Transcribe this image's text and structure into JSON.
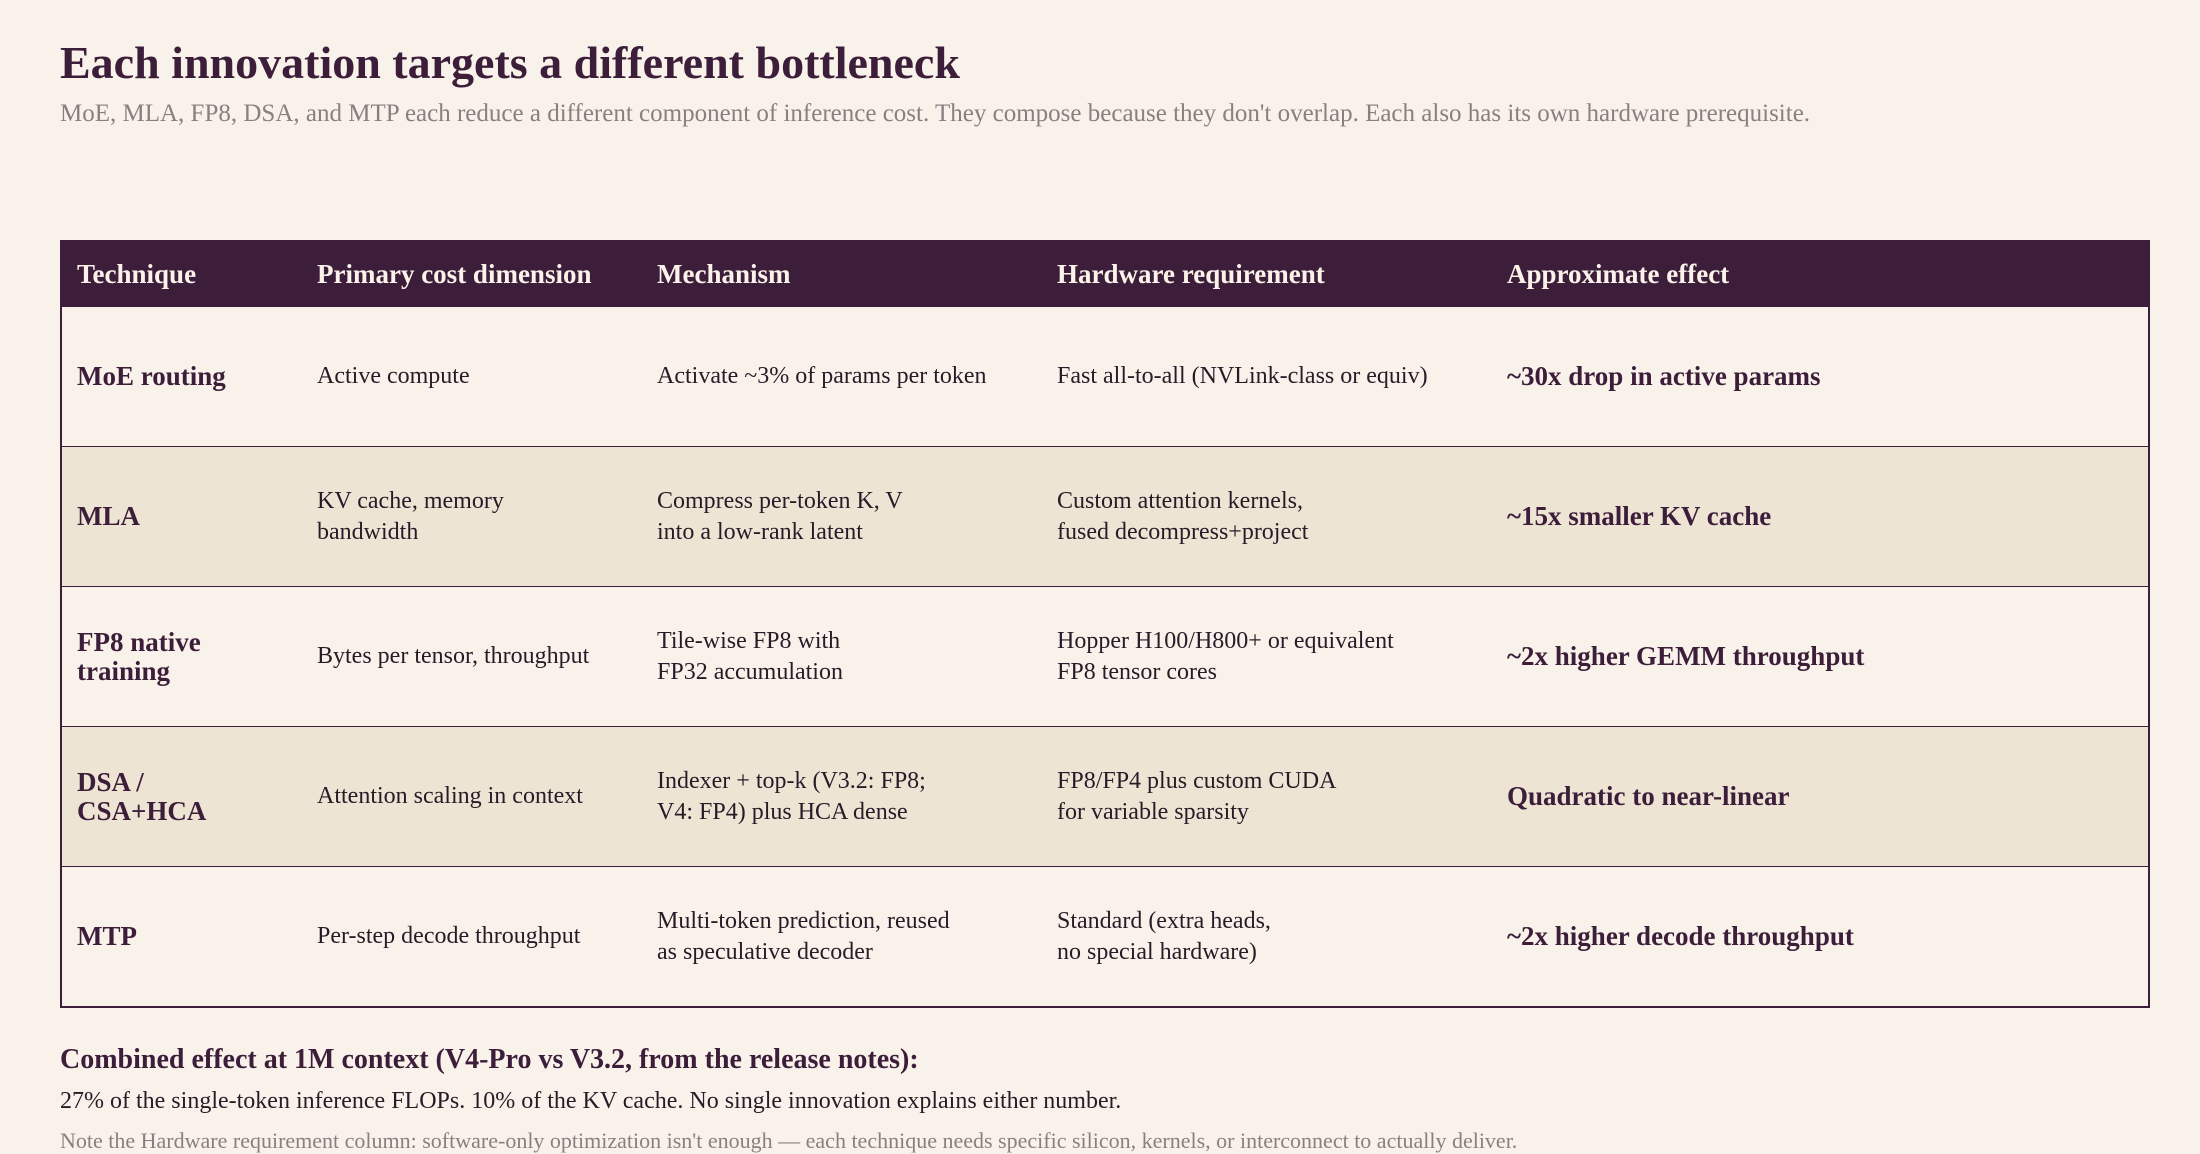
{
  "header": {
    "title": "Each innovation targets a different bottleneck",
    "subtitle": "MoE, MLA, FP8, DSA, and MTP each reduce a different component of inference cost. They compose because they don't overlap. Each also has its own hardware prerequisite."
  },
  "table": {
    "columns": [
      "Technique",
      "Primary cost dimension",
      "Mechanism",
      "Hardware requirement",
      "Approximate effect"
    ],
    "rows": [
      [
        "MoE routing",
        "Active compute",
        "Activate ~3% of params per token",
        "Fast all-to-all (NVLink-class or equiv)",
        "~30x drop in active params"
      ],
      [
        "MLA",
        "KV cache, memory\nbandwidth",
        "Compress per-token K, V\ninto a low-rank latent",
        "Custom attention kernels,\nfused decompress+project",
        "~15x smaller KV cache"
      ],
      [
        "FP8 native\ntraining",
        "Bytes per tensor, throughput",
        "Tile-wise FP8 with\nFP32 accumulation",
        "Hopper H100/H800+ or equivalent\nFP8 tensor cores",
        "~2x higher GEMM throughput"
      ],
      [
        "DSA /\nCSA+HCA",
        "Attention scaling in context",
        "Indexer + top-k (V3.2: FP8;\nV4: FP4) plus HCA dense",
        "FP8/FP4 plus custom CUDA\nfor variable sparsity",
        "Quadratic to near-linear"
      ],
      [
        "MTP",
        "Per-step decode throughput",
        "Multi-token prediction, reused\nas speculative decoder",
        "Standard (extra heads,\nno special hardware)",
        "~2x higher decode throughput"
      ]
    ]
  },
  "footer": {
    "heading": "Combined effect at 1M context (V4-Pro vs V3.2, from the release notes):",
    "summary": "27% of the single-token inference FLOPs.  10% of the KV cache.  No single innovation explains either number.",
    "note": "Note the Hardware requirement column: software-only optimization isn't enough — each technique needs specific silicon, kernels, or interconnect to actually deliver."
  }
}
